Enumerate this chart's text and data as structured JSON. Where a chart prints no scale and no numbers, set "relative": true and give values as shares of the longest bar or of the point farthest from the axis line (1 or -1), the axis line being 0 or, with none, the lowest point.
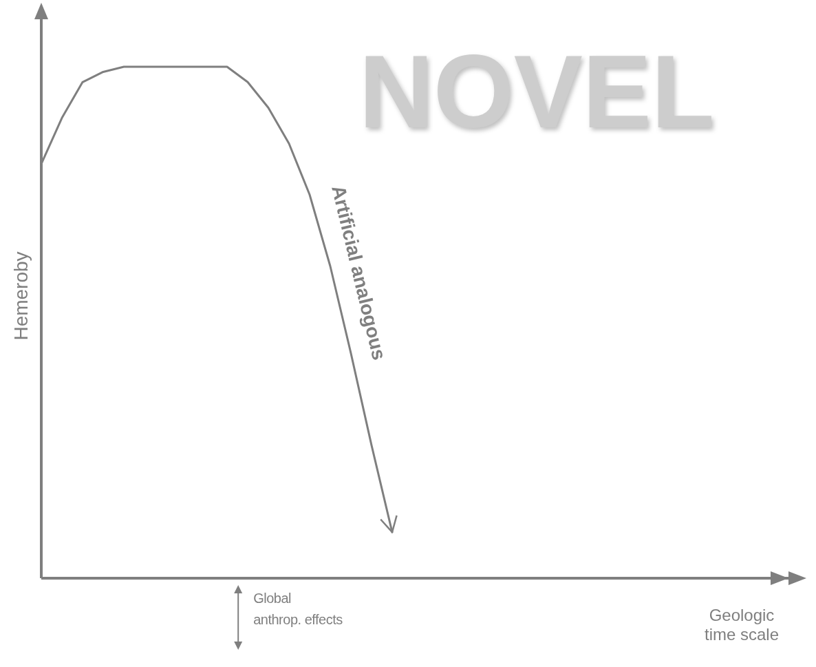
{
  "chart_data": {
    "type": "line",
    "title": "NOVEL",
    "xlabel": "Geologic time scale",
    "ylabel": "Hemeroby",
    "relative": true,
    "categories": [
      null,
      null,
      null,
      null,
      null,
      null,
      null,
      null,
      null,
      null,
      null,
      null,
      null,
      null,
      null,
      null,
      null,
      null,
      null,
      null,
      null,
      null,
      null,
      null,
      null,
      null,
      null,
      null,
      null,
      null,
      null,
      null,
      null,
      null,
      null,
      null,
      null
    ],
    "series": [
      {
        "color": "#7f7f7f",
        "values": [
          0.81,
          0.9,
          0.97,
          0.99,
          1,
          1,
          1,
          1,
          1,
          1,
          0.97,
          0.92,
          0.85,
          0.75,
          0.61,
          0.44,
          0.26,
          0.09,
          null,
          null,
          null,
          null,
          null,
          null,
          null,
          null,
          null,
          null,
          null,
          null,
          null,
          null,
          null,
          null,
          null,
          null,
          null
        ]
      }
    ],
    "annotations": [
      "Artificial analogous",
      "Global anthrop. effects"
    ]
  }
}
